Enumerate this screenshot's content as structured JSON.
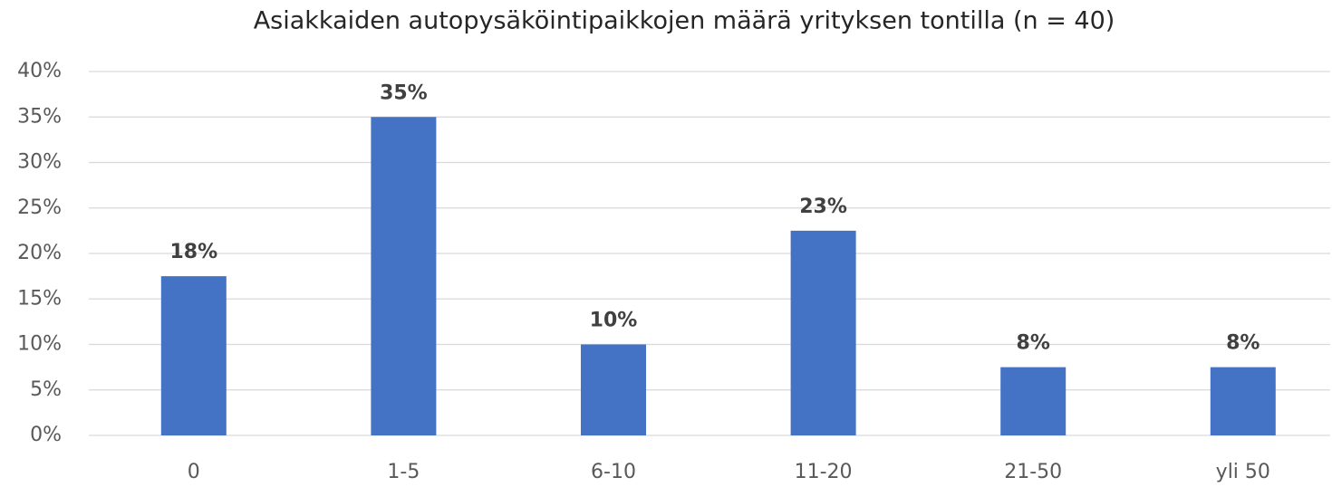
{
  "chart_data": {
    "type": "bar",
    "title": "Asiakkaiden autopysäköintipaikkojen määrä yrityksen tontilla (n = 40)",
    "categories": [
      "0",
      "1-5",
      "6-10",
      "11-20",
      "21-50",
      "yli 50"
    ],
    "values": [
      17.5,
      35,
      10,
      22.5,
      7.5,
      7.5
    ],
    "value_labels": [
      "18%",
      "35%",
      "10%",
      "23%",
      "8%",
      "8%"
    ],
    "color": "#4472c4",
    "ylim": [
      0,
      40
    ],
    "yticks": [
      {
        "value": 0,
        "label": "0%"
      },
      {
        "value": 5,
        "label": "5%"
      },
      {
        "value": 10,
        "label": "10%"
      },
      {
        "value": 15,
        "label": "15%"
      },
      {
        "value": 20,
        "label": "20%"
      },
      {
        "value": 25,
        "label": "25%"
      },
      {
        "value": 30,
        "label": "30%"
      },
      {
        "value": 35,
        "label": "35%"
      },
      {
        "value": 40,
        "label": "40%"
      }
    ],
    "grid": true
  }
}
